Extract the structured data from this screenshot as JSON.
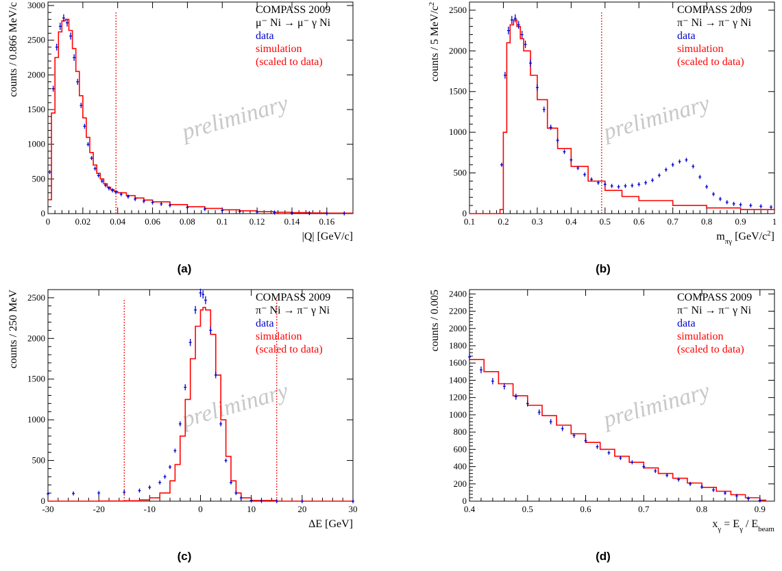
{
  "colors": {
    "data": "#0000cc",
    "simulation": "#ff0000",
    "cut": "#ff0000",
    "watermark": "#c8c8c8"
  },
  "chart_data": [
    {
      "type": "line",
      "panel_label": "(a)",
      "xlabel": "|Q| [GeV/c]",
      "ylabel": "counts / 0.866 MeV/c",
      "xlim": [
        0,
        0.175
      ],
      "ylim": [
        0,
        3050
      ],
      "xticks": [
        0,
        0.02,
        0.04,
        0.06,
        0.08,
        0.1,
        0.12,
        0.14,
        0.16
      ],
      "xtick_labels": [
        "0",
        "0.02",
        "0.04",
        "0.06",
        "0.08",
        "0.1",
        "0.12",
        "0.14",
        "0.16"
      ],
      "yticks": [
        0,
        500,
        1000,
        1500,
        2000,
        2500,
        3000
      ],
      "ytick_labels": [
        "0",
        "500",
        "1000",
        "1500",
        "2000",
        "2500",
        "3000"
      ],
      "cuts": [
        0.039
      ],
      "legend": {
        "title": "COMPASS 2009",
        "reaction": "μ⁻ Ni → μ⁻ γ Ni",
        "data_label": "data",
        "sim_label": "simulation",
        "scaled_label": "(scaled to data)"
      },
      "watermark": "preliminary",
      "series": [
        {
          "name": "simulation",
          "x": [
            0,
            0.002,
            0.004,
            0.006,
            0.008,
            0.01,
            0.012,
            0.014,
            0.016,
            0.018,
            0.02,
            0.022,
            0.024,
            0.026,
            0.028,
            0.03,
            0.032,
            0.034,
            0.036,
            0.038,
            0.04,
            0.045,
            0.05,
            0.055,
            0.06,
            0.07,
            0.08,
            0.09,
            0.1,
            0.11,
            0.12,
            0.13,
            0.14,
            0.15,
            0.16,
            0.175
          ],
          "y": [
            200,
            1450,
            2250,
            2620,
            2780,
            2800,
            2640,
            2380,
            2050,
            1700,
            1380,
            1100,
            880,
            700,
            580,
            500,
            430,
            380,
            345,
            320,
            300,
            260,
            225,
            195,
            170,
            130,
            100,
            75,
            55,
            40,
            28,
            20,
            14,
            10,
            7,
            5
          ]
        },
        {
          "name": "data",
          "x": [
            0.001,
            0.003,
            0.005,
            0.007,
            0.009,
            0.011,
            0.013,
            0.015,
            0.017,
            0.019,
            0.021,
            0.023,
            0.025,
            0.027,
            0.029,
            0.031,
            0.033,
            0.035,
            0.037,
            0.039,
            0.042,
            0.046,
            0.05,
            0.055,
            0.06,
            0.065,
            0.07,
            0.08,
            0.09,
            0.1,
            0.11,
            0.12,
            0.13,
            0.14,
            0.15,
            0.16,
            0.17
          ],
          "y": [
            600,
            1800,
            2400,
            2700,
            2820,
            2750,
            2560,
            2250,
            1900,
            1560,
            1260,
            1000,
            800,
            650,
            550,
            470,
            410,
            365,
            335,
            310,
            280,
            245,
            210,
            180,
            160,
            140,
            120,
            90,
            65,
            45,
            32,
            22,
            15,
            10,
            7,
            5,
            4
          ]
        }
      ]
    },
    {
      "type": "line",
      "panel_label": "(b)",
      "xlabel": "m",
      "xlabel_sub": "πγ",
      "xlabel_rest": " [GeV/c",
      "xlabel_sup": "2",
      "xlabel_end": "]",
      "ylabel": "counts / 5 MeV/c",
      "ylabel_sup": "2",
      "xlim": [
        0.1,
        1.0
      ],
      "ylim": [
        0,
        2600
      ],
      "xticks": [
        0.1,
        0.2,
        0.3,
        0.4,
        0.5,
        0.6,
        0.7,
        0.8,
        0.9,
        1.0
      ],
      "xtick_labels": [
        "0.1",
        "0.2",
        "0.3",
        "0.4",
        "0.5",
        "0.6",
        "0.7",
        "0.8",
        "0.9",
        "1"
      ],
      "yticks": [
        0,
        500,
        1000,
        1500,
        2000,
        2500
      ],
      "ytick_labels": [
        "0",
        "500",
        "1000",
        "1500",
        "2000",
        "2500"
      ],
      "cuts": [
        0.49
      ],
      "legend": {
        "title": "COMPASS 2009",
        "reaction": "π⁻ Ni → π⁻ γ Ni",
        "data_label": "data",
        "sim_label": "simulation",
        "scaled_label": "(scaled to data)"
      },
      "watermark": "preliminary",
      "series": [
        {
          "name": "simulation",
          "x": [
            0.1,
            0.18,
            0.19,
            0.2,
            0.21,
            0.22,
            0.23,
            0.24,
            0.25,
            0.26,
            0.28,
            0.3,
            0.33,
            0.36,
            0.4,
            0.45,
            0.5,
            0.55,
            0.6,
            0.7,
            0.8,
            0.9,
            1.0
          ],
          "y": [
            0,
            0,
            50,
            1000,
            2100,
            2320,
            2380,
            2300,
            2150,
            2000,
            1700,
            1400,
            1050,
            800,
            580,
            400,
            285,
            210,
            160,
            100,
            70,
            50,
            40
          ]
        },
        {
          "name": "data",
          "x": [
            0.195,
            0.205,
            0.215,
            0.225,
            0.235,
            0.245,
            0.255,
            0.265,
            0.28,
            0.3,
            0.32,
            0.34,
            0.36,
            0.38,
            0.4,
            0.42,
            0.44,
            0.46,
            0.48,
            0.5,
            0.52,
            0.54,
            0.56,
            0.58,
            0.6,
            0.62,
            0.64,
            0.66,
            0.68,
            0.7,
            0.72,
            0.74,
            0.76,
            0.78,
            0.8,
            0.82,
            0.84,
            0.86,
            0.88,
            0.9,
            0.93,
            0.96,
            0.99
          ],
          "y": [
            600,
            1700,
            2250,
            2380,
            2400,
            2320,
            2200,
            2080,
            1850,
            1550,
            1280,
            1060,
            900,
            760,
            660,
            560,
            480,
            420,
            380,
            360,
            340,
            330,
            340,
            345,
            360,
            380,
            410,
            470,
            540,
            600,
            640,
            660,
            580,
            450,
            330,
            240,
            180,
            140,
            120,
            110,
            100,
            90,
            80
          ]
        }
      ]
    },
    {
      "type": "line",
      "panel_label": "(c)",
      "xlabel": "ΔE [GeV]",
      "ylabel": "counts / 250 MeV",
      "xlim": [
        -30,
        30
      ],
      "ylim": [
        0,
        2600
      ],
      "xticks": [
        -30,
        -20,
        -10,
        0,
        10,
        20,
        30
      ],
      "xtick_labels": [
        "-30",
        "-20",
        "-10",
        "0",
        "10",
        "20",
        "30"
      ],
      "yticks": [
        0,
        500,
        1000,
        1500,
        2000,
        2500
      ],
      "ytick_labels": [
        "0",
        "500",
        "1000",
        "1500",
        "2000",
        "2500"
      ],
      "cuts": [
        -15,
        15
      ],
      "legend": {
        "title": "COMPASS 2009",
        "reaction": "π⁻ Ni → π⁻ γ Ni",
        "data_label": "data",
        "sim_label": "simulation",
        "scaled_label": "(scaled to data)"
      },
      "watermark": "preliminary",
      "series": [
        {
          "name": "simulation",
          "x": [
            -30,
            -20,
            -15,
            -12,
            -10,
            -8,
            -6,
            -5,
            -4,
            -3,
            -2,
            -1,
            0,
            0.5,
            1,
            2,
            3,
            4,
            5,
            6,
            7,
            8,
            10,
            15,
            20,
            30
          ],
          "y": [
            0,
            2,
            5,
            15,
            40,
            100,
            250,
            450,
            800,
            1250,
            1750,
            2150,
            2350,
            2380,
            2350,
            2050,
            1550,
            1000,
            550,
            250,
            100,
            40,
            8,
            0,
            0,
            0
          ]
        },
        {
          "name": "data",
          "x": [
            -30,
            -25,
            -20,
            -15,
            -12,
            -10,
            -8,
            -7,
            -6,
            -5,
            -4,
            -3,
            -2,
            -1,
            0,
            0.5,
            1,
            2,
            3,
            4,
            5,
            6,
            7,
            8,
            10,
            12,
            15,
            20,
            30
          ],
          "y": [
            90,
            95,
            100,
            110,
            130,
            170,
            230,
            300,
            420,
            620,
            950,
            1400,
            1950,
            2350,
            2560,
            2540,
            2470,
            2100,
            1550,
            950,
            500,
            230,
            100,
            40,
            10,
            3,
            1,
            0,
            0
          ]
        }
      ]
    },
    {
      "type": "line",
      "panel_label": "(d)",
      "xlabel": "x",
      "xlabel_sub": "γ",
      "xlabel_rest": " = E",
      "xlabel_sub2": "γ",
      "xlabel_rest2": " / E",
      "xlabel_sub3": "beam",
      "ylabel": "counts / 0.005",
      "xlim": [
        0.4,
        0.925
      ],
      "ylim": [
        0,
        2450
      ],
      "xticks": [
        0.4,
        0.5,
        0.6,
        0.7,
        0.8,
        0.9
      ],
      "xtick_labels": [
        "0.4",
        "0.5",
        "0.6",
        "0.7",
        "0.8",
        "0.9"
      ],
      "yticks": [
        0,
        200,
        400,
        600,
        800,
        1000,
        1200,
        1400,
        1600,
        1800,
        2000,
        2200,
        2400
      ],
      "ytick_labels": [
        "0",
        "200",
        "400",
        "600",
        "800",
        "1000",
        "1200",
        "1400",
        "1600",
        "1800",
        "2000",
        "2200",
        "2400"
      ],
      "cuts": [],
      "legend": {
        "title": "COMPASS 2009",
        "reaction": "π⁻ Ni → π⁻ γ Ni",
        "data_label": "data",
        "sim_label": "simulation",
        "scaled_label": "(scaled to data)"
      },
      "watermark": "preliminary",
      "series": [
        {
          "name": "simulation",
          "x": [
            0.4,
            0.425,
            0.45,
            0.475,
            0.5,
            0.525,
            0.55,
            0.575,
            0.6,
            0.625,
            0.65,
            0.675,
            0.7,
            0.725,
            0.75,
            0.775,
            0.8,
            0.825,
            0.85,
            0.875,
            0.9,
            0.91
          ],
          "y": [
            1640,
            1500,
            1360,
            1220,
            1110,
            990,
            880,
            780,
            680,
            600,
            520,
            450,
            385,
            320,
            265,
            210,
            160,
            115,
            75,
            40,
            12,
            0
          ]
        },
        {
          "name": "data",
          "x": [
            0.4,
            0.42,
            0.44,
            0.46,
            0.48,
            0.5,
            0.52,
            0.54,
            0.56,
            0.58,
            0.6,
            0.62,
            0.64,
            0.66,
            0.68,
            0.7,
            0.72,
            0.74,
            0.76,
            0.78,
            0.8,
            0.82,
            0.84,
            0.86,
            0.88,
            0.9
          ],
          "y": [
            1670,
            1520,
            1390,
            1330,
            1210,
            1130,
            1030,
            920,
            840,
            760,
            700,
            630,
            560,
            500,
            450,
            400,
            350,
            300,
            250,
            200,
            165,
            130,
            95,
            60,
            30,
            10
          ]
        }
      ]
    }
  ]
}
